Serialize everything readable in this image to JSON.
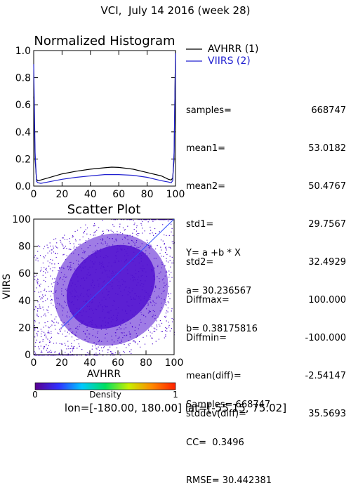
{
  "header": {
    "title": "VCI,  July 14 2016 (week 28)"
  },
  "chart_data": [
    {
      "type": "line",
      "title": "Normalized Histogram",
      "xlim": [
        0,
        100
      ],
      "ylim": [
        0,
        1.0
      ],
      "xticks": [
        0,
        20,
        40,
        60,
        80,
        100
      ],
      "yticks": [
        0.0,
        0.2,
        0.4,
        0.6,
        0.8,
        1.0
      ],
      "legend_position": "right",
      "colors": {
        "series1": "#000000",
        "series2": "#2020d0"
      },
      "series": [
        {
          "name": "AVHRR (1)",
          "x": [
            0,
            1,
            2,
            3,
            5,
            10,
            20,
            30,
            40,
            50,
            55,
            60,
            70,
            80,
            90,
            95,
            97,
            98,
            99,
            100
          ],
          "values": [
            0.66,
            0.2,
            0.05,
            0.04,
            0.045,
            0.06,
            0.09,
            0.11,
            0.125,
            0.135,
            0.14,
            0.138,
            0.125,
            0.1,
            0.075,
            0.05,
            0.045,
            0.06,
            0.2,
            1.0
          ]
        },
        {
          "name": "VIIRS (2)",
          "x": [
            0,
            1,
            2,
            3,
            5,
            10,
            20,
            30,
            40,
            50,
            55,
            60,
            70,
            80,
            90,
            95,
            97,
            98,
            99,
            100
          ],
          "values": [
            0.9,
            0.25,
            0.035,
            0.025,
            0.02,
            0.03,
            0.05,
            0.065,
            0.075,
            0.085,
            0.085,
            0.085,
            0.08,
            0.065,
            0.04,
            0.03,
            0.025,
            0.04,
            0.25,
            0.98
          ]
        }
      ]
    },
    {
      "type": "scatter",
      "title": "Scatter Plot",
      "xlabel": "AVHRR",
      "ylabel": "VIIRS",
      "xlim": [
        0,
        100
      ],
      "ylim": [
        0,
        100
      ],
      "xticks": [
        0,
        20,
        40,
        60,
        80,
        100
      ],
      "yticks": [
        0,
        20,
        40,
        60,
        80,
        100
      ],
      "regression": {
        "a": 30.236567,
        "b": 0.38175816
      },
      "colorbar": {
        "label": "Density",
        "min_label": "0",
        "max_label": "1",
        "colors": [
          "#5a0090",
          "#3030ff",
          "#00c8ff",
          "#00e060",
          "#c8f000",
          "#ff8800",
          "#ff2000"
        ]
      },
      "point_color": "#5010d0",
      "line_color": "#3050ff"
    }
  ],
  "stats": [
    {
      "label": "samples=",
      "value": "668747"
    },
    {
      "label": "mean1=",
      "value": "53.0182"
    },
    {
      "label": "mean2=",
      "value": "50.4767"
    },
    {
      "label": "std1=",
      "value": "29.7567"
    },
    {
      "label": "std2=",
      "value": "32.4929"
    },
    {
      "label": "Diffmax=",
      "value": "100.000"
    },
    {
      "label": "Diffmin=",
      "value": "-100.000"
    },
    {
      "label": "mean(diff)=",
      "value": "-2.54147"
    },
    {
      "label": "stddev(diff)=",
      "value": "35.5693"
    }
  ],
  "regression_text": {
    "eq": "Y= a +b * X",
    "a": "a= 30.236567",
    "b": "b= 0.38175816",
    "samples": "Samples= 668747",
    "cc": "CC=  0.3496",
    "rmse": "RMSE= 30.442381"
  },
  "footer": {
    "bounds": "lon=[-180.00, 180.00] lat=[-55.15, 75.02]"
  }
}
